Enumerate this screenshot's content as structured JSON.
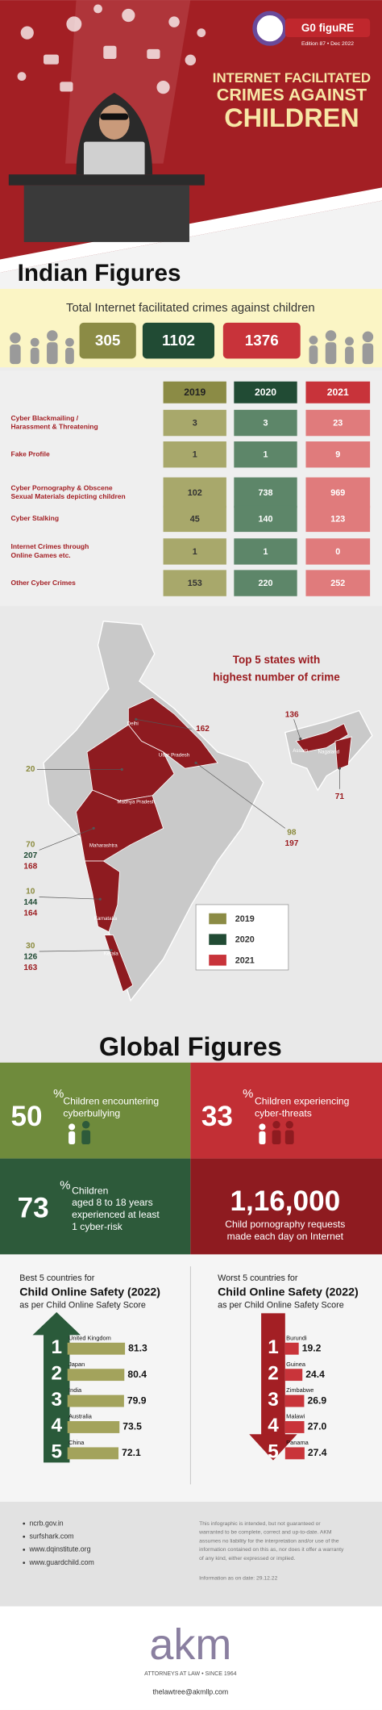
{
  "header": {
    "logo": "G0 figuRE",
    "edition": "Edition 87 • Dec 2022",
    "title_lines": [
      "INTERNET FACILITATED",
      "CRIMES AGAINST",
      "CHILDREN"
    ]
  },
  "indian": {
    "title": "Indian Figures",
    "total_label": "Total Internet facilitated crimes against children",
    "totals": [
      305,
      1102,
      1376
    ]
  },
  "table": {
    "years": [
      "2019",
      "2020",
      "2021"
    ],
    "header_colors": [
      "#8b8b45",
      "#214b34",
      "#c8333a"
    ],
    "cell_colors": [
      "#a8a86b",
      "#5d8669",
      "#e07b7c"
    ],
    "rows": [
      {
        "label": [
          "Cyber Blackmailing /",
          "Harassment & Threatening"
        ],
        "values": [
          3,
          3,
          23
        ]
      },
      {
        "label": [
          "Fake Profile"
        ],
        "values": [
          1,
          1,
          9
        ]
      },
      {
        "label": [
          "Cyber Pornography & Obscene",
          "Sexual Materials depicting children"
        ],
        "values": [
          102,
          738,
          969
        ]
      },
      {
        "label": [
          "Cyber Stalking"
        ],
        "values": [
          45,
          140,
          123
        ]
      },
      {
        "label": [
          "Internet Crimes through",
          "Online Games etc."
        ],
        "values": [
          1,
          1,
          0
        ]
      },
      {
        "label": [
          "Other Cyber Crimes"
        ],
        "values": [
          153,
          220,
          252
        ]
      }
    ]
  },
  "map": {
    "title_lines": [
      "Top 5 states with",
      "highest number of crime"
    ],
    "states": [
      "Delhi",
      "Uttar Pradesh",
      "Madhya Pradesh",
      "Maharashtra",
      "Karnataka",
      "Kerala",
      "Assam",
      "Nagaland"
    ],
    "callouts": [
      {
        "values": [
          162
        ],
        "colors": [
          "#9b1c20"
        ]
      },
      {
        "values": [
          136
        ],
        "colors": [
          "#9b1c20"
        ]
      },
      {
        "values": [
          71
        ],
        "colors": [
          "#9b1c20"
        ]
      },
      {
        "values": [
          20
        ],
        "colors": [
          "#8a8a3d"
        ]
      },
      {
        "values": [
          98,
          197
        ],
        "colors": [
          "#8a8a3d",
          "#9b1c20"
        ]
      },
      {
        "values": [
          70,
          207,
          168
        ],
        "colors": [
          "#8a8a3d",
          "#1f4a33",
          "#9b1c20"
        ]
      },
      {
        "values": [
          10,
          144,
          164
        ],
        "colors": [
          "#8a8a3d",
          "#1f4a33",
          "#9b1c20"
        ]
      },
      {
        "values": [
          30,
          126,
          163
        ],
        "colors": [
          "#8a8a3d",
          "#1f4a33",
          "#9b1c20"
        ]
      }
    ]
  },
  "global": {
    "title": "Global Figures",
    "stats": [
      {
        "value": "50",
        "unit": "%",
        "lines": [
          "Children encountering",
          "cyberbullying"
        ]
      },
      {
        "value": "33",
        "unit": "%",
        "lines": [
          "Children experiencing",
          "cyber-threats"
        ]
      },
      {
        "value": "73",
        "unit": "%",
        "lines": [
          "Children",
          "aged 8 to 18 years",
          "experienced at least",
          "1 cyber-risk"
        ]
      },
      {
        "value": "1,16,000",
        "lines": [
          "Child pornography requests",
          "made each day on Internet"
        ]
      }
    ]
  },
  "safety": {
    "best": {
      "heading": "Best 5 countries for",
      "title": "Child Online Safety (2022)",
      "subtitle": "as per Child Online Safety Score",
      "color": "#a3a35c",
      "countries": [
        {
          "rank": "1",
          "name": "United Kingdom",
          "score": 81.3
        },
        {
          "rank": "2",
          "name": "Japan",
          "score": 80.4
        },
        {
          "rank": "3",
          "name": "India",
          "score": 79.9
        },
        {
          "rank": "4",
          "name": "Australia",
          "score": 73.5
        },
        {
          "rank": "5",
          "name": "China",
          "score": 72.1
        }
      ]
    },
    "worst": {
      "heading": "Worst 5 countries for",
      "title": "Child Online Safety (2022)",
      "subtitle": "as per Child Online Safety Score",
      "color": "#c9343a",
      "countries": [
        {
          "rank": "1",
          "name": "Burundi",
          "score": 19.2
        },
        {
          "rank": "2",
          "name": "Guinea",
          "score": 24.4
        },
        {
          "rank": "3",
          "name": "Zimbabwe",
          "score": 26.9
        },
        {
          "rank": "4",
          "name": "Malawi",
          "score": 27.0,
          "score_label": "27.0"
        },
        {
          "rank": "5",
          "name": "Panama",
          "score": 27.4
        }
      ]
    }
  },
  "footer": {
    "sources": [
      "ncrb.gov.in",
      "surfshark.com",
      "www.dqinstitute.org",
      "www.guardchild.com"
    ],
    "disclaimer": [
      "This infographic is intended, but not guaranteed or",
      "warranted to be complete, correct and up-to-date. AKM",
      "assumes no liability for the interpretation and/or use of the",
      "information contained on this as, nor does it offer a warranty",
      "of any kind, either expressed or implied."
    ],
    "date": "Information as on date: 29.12.22",
    "brand": "akm",
    "tagline": "ATTORNEYS AT LAW • SINCE 1964",
    "email": "thelawtree@akmllp.com"
  }
}
